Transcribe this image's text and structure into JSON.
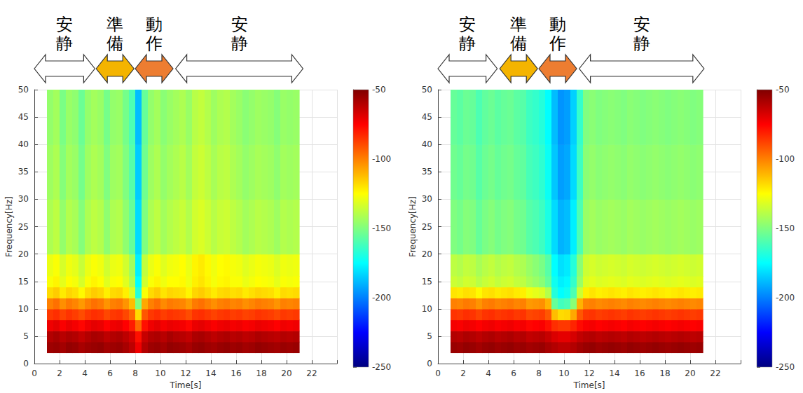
{
  "chart_data": [
    {
      "type": "heatmap",
      "phases": [
        {
          "label": "安静",
          "start": 0,
          "end": 4.8,
          "color": "#ffffff"
        },
        {
          "label": "準備",
          "start": 4.9,
          "end": 7.9,
          "color": "#f4b400"
        },
        {
          "label": "動作",
          "start": 8.0,
          "end": 11.0,
          "color": "#ed7d31"
        },
        {
          "label": "安静",
          "start": 11.2,
          "end": 21.3,
          "color": "#ffffff"
        }
      ],
      "x_label": "Time[s]",
      "y_label": "Frequency[Hz]",
      "xlim": [
        0,
        24
      ],
      "xticks": [
        0,
        2,
        4,
        6,
        8,
        10,
        12,
        14,
        16,
        18,
        20,
        22
      ],
      "ylim": [
        0,
        50
      ],
      "yticks": [
        0,
        5,
        10,
        15,
        20,
        25,
        30,
        35,
        40,
        45,
        50
      ],
      "grid": true,
      "time_edges": [
        1,
        1.5,
        2,
        2.5,
        3,
        3.5,
        4,
        4.5,
        5,
        5.5,
        6,
        6.5,
        7,
        7.5,
        8,
        8.5,
        9,
        9.5,
        10,
        10.5,
        11,
        11.5,
        12,
        12.5,
        13,
        13.5,
        14,
        14.5,
        15,
        15.5,
        16,
        16.5,
        17,
        17.5,
        18,
        18.5,
        19,
        19.5,
        20,
        20.5,
        21
      ],
      "freq_edges": [
        2,
        4,
        6,
        8,
        10,
        12,
        14,
        16,
        20,
        30,
        40,
        50
      ],
      "power": [
        [
          -56,
          -55,
          -57,
          -54,
          -55,
          -58,
          -56,
          -55,
          -54,
          -57,
          -56,
          -55,
          -58,
          -62,
          -72,
          -60,
          -56,
          -55,
          -57,
          -54,
          -55,
          -56,
          -58,
          -55,
          -54,
          -56,
          -57,
          -55,
          -54,
          -56,
          -55,
          -57,
          -56,
          -54,
          -55,
          -56,
          -57,
          -55,
          -56,
          -55
        ],
        [
          -60,
          -58,
          -61,
          -59,
          -60,
          -63,
          -60,
          -58,
          -59,
          -62,
          -60,
          -59,
          -62,
          -66,
          -78,
          -64,
          -60,
          -59,
          -61,
          -58,
          -60,
          -61,
          -63,
          -59,
          -58,
          -60,
          -62,
          -60,
          -59,
          -61,
          -60,
          -62,
          -61,
          -59,
          -60,
          -61,
          -62,
          -60,
          -61,
          -60
        ],
        [
          -72,
          -70,
          -74,
          -71,
          -73,
          -76,
          -72,
          -70,
          -71,
          -75,
          -72,
          -71,
          -75,
          -80,
          -95,
          -78,
          -72,
          -70,
          -73,
          -71,
          -72,
          -73,
          -76,
          -71,
          -70,
          -72,
          -74,
          -72,
          -71,
          -73,
          -72,
          -74,
          -73,
          -71,
          -72,
          -73,
          -75,
          -72,
          -73,
          -72
        ],
        [
          -86,
          -84,
          -88,
          -85,
          -87,
          -90,
          -86,
          -84,
          -85,
          -89,
          -86,
          -85,
          -89,
          -95,
          -118,
          -92,
          -86,
          -84,
          -87,
          -85,
          -86,
          -87,
          -90,
          -85,
          -84,
          -86,
          -88,
          -86,
          -85,
          -87,
          -86,
          -88,
          -87,
          -85,
          -86,
          -87,
          -89,
          -86,
          -87,
          -86
        ],
        [
          -100,
          -97,
          -103,
          -99,
          -101,
          -105,
          -100,
          -97,
          -99,
          -104,
          -100,
          -99,
          -104,
          -112,
          -150,
          -108,
          -100,
          -97,
          -102,
          -99,
          -100,
          -101,
          -105,
          -99,
          -97,
          -100,
          -103,
          -100,
          -99,
          -101,
          -100,
          -103,
          -101,
          -99,
          -100,
          -101,
          -104,
          -100,
          -101,
          -100
        ],
        [
          -118,
          -115,
          -121,
          -117,
          -119,
          -124,
          -118,
          -115,
          -117,
          -122,
          -118,
          -117,
          -122,
          -132,
          -168,
          -126,
          -118,
          -115,
          -120,
          -117,
          -118,
          -119,
          -123,
          -117,
          -115,
          -118,
          -121,
          -118,
          -117,
          -119,
          -118,
          -121,
          -119,
          -117,
          -118,
          -119,
          -122,
          -118,
          -119,
          -118
        ],
        [
          -126,
          -123,
          -130,
          -125,
          -127,
          -133,
          -126,
          -123,
          -125,
          -131,
          -126,
          -125,
          -131,
          -140,
          -175,
          -134,
          -126,
          -123,
          -128,
          -125,
          -125,
          -124,
          -128,
          -122,
          -120,
          -123,
          -127,
          -124,
          -123,
          -126,
          -126,
          -129,
          -127,
          -125,
          -126,
          -127,
          -130,
          -126,
          -127,
          -126
        ],
        [
          -129,
          -126,
          -133,
          -128,
          -130,
          -136,
          -129,
          -126,
          -128,
          -134,
          -129,
          -128,
          -134,
          -143,
          -178,
          -137,
          -129,
          -126,
          -131,
          -128,
          -127,
          -125,
          -129,
          -123,
          -121,
          -124,
          -128,
          -125,
          -124,
          -127,
          -128,
          -131,
          -129,
          -127,
          -128,
          -129,
          -132,
          -128,
          -129,
          -128
        ],
        [
          -141,
          -138,
          -146,
          -140,
          -142,
          -149,
          -141,
          -138,
          -140,
          -147,
          -141,
          -140,
          -147,
          -155,
          -182,
          -150,
          -141,
          -138,
          -143,
          -140,
          -138,
          -136,
          -140,
          -134,
          -132,
          -135,
          -139,
          -136,
          -135,
          -138,
          -140,
          -143,
          -141,
          -139,
          -140,
          -141,
          -144,
          -140,
          -141,
          -140
        ],
        [
          -144,
          -141,
          -149,
          -143,
          -145,
          -152,
          -144,
          -141,
          -143,
          -150,
          -144,
          -143,
          -150,
          -158,
          -185,
          -153,
          -144,
          -141,
          -146,
          -143,
          -141,
          -139,
          -143,
          -137,
          -135,
          -138,
          -142,
          -139,
          -138,
          -141,
          -143,
          -146,
          -144,
          -142,
          -143,
          -144,
          -147,
          -143,
          -144,
          -143
        ],
        [
          -146,
          -143,
          -151,
          -145,
          -147,
          -154,
          -146,
          -143,
          -145,
          -152,
          -146,
          -145,
          -152,
          -160,
          -188,
          -155,
          -146,
          -143,
          -148,
          -145,
          -143,
          -141,
          -145,
          -139,
          -137,
          -140,
          -144,
          -141,
          -140,
          -143,
          -145,
          -148,
          -146,
          -144,
          -145,
          -146,
          -149,
          -145,
          -146,
          -145
        ]
      ],
      "colorbar": {
        "range": [
          -250,
          -50
        ],
        "ticks": [
          -250,
          -200,
          -150,
          -100,
          -50
        ]
      }
    },
    {
      "type": "heatmap",
      "phases": [
        {
          "label": "安静",
          "start": 0,
          "end": 4.7,
          "color": "#ffffff"
        },
        {
          "label": "準備",
          "start": 4.9,
          "end": 7.9,
          "color": "#f4b400"
        },
        {
          "label": "動作",
          "start": 8.0,
          "end": 11.0,
          "color": "#ed7d31"
        },
        {
          "label": "安静",
          "start": 11.2,
          "end": 21.1,
          "color": "#ffffff"
        }
      ],
      "x_label": "Time[s]",
      "y_label": "Frequency[Hz]",
      "xlim": [
        0,
        24
      ],
      "xticks": [
        0,
        2,
        4,
        6,
        8,
        10,
        12,
        14,
        16,
        18,
        20,
        22
      ],
      "ylim": [
        0,
        50
      ],
      "yticks": [
        0,
        5,
        10,
        15,
        20,
        25,
        30,
        35,
        40,
        45,
        50
      ],
      "grid": true,
      "time_edges": [
        1,
        1.5,
        2,
        2.5,
        3,
        3.5,
        4,
        4.5,
        5,
        5.5,
        6,
        6.5,
        7,
        7.5,
        8,
        8.5,
        9,
        9.5,
        10,
        10.5,
        11,
        11.5,
        12,
        12.5,
        13,
        13.5,
        14,
        14.5,
        15,
        15.5,
        16,
        16.5,
        17,
        17.5,
        18,
        18.5,
        19,
        19.5,
        20,
        20.5,
        21
      ],
      "freq_edges": [
        2,
        4,
        6,
        8,
        10,
        12,
        14,
        16,
        20,
        30,
        40,
        50
      ],
      "power": [
        [
          -55,
          -56,
          -54,
          -55,
          -57,
          -55,
          -54,
          -56,
          -55,
          -54,
          -56,
          -55,
          -57,
          -56,
          -55,
          -58,
          -60,
          -62,
          -62,
          -60,
          -57,
          -55,
          -54,
          -56,
          -55,
          -54,
          -55,
          -56,
          -54,
          -55,
          -56,
          -55,
          -54,
          -55,
          -56,
          -55,
          -54,
          -55,
          -56,
          -55
        ],
        [
          -60,
          -61,
          -59,
          -60,
          -62,
          -60,
          -59,
          -61,
          -60,
          -59,
          -61,
          -60,
          -63,
          -62,
          -61,
          -64,
          -68,
          -70,
          -70,
          -67,
          -63,
          -61,
          -60,
          -62,
          -61,
          -60,
          -61,
          -62,
          -60,
          -61,
          -62,
          -61,
          -60,
          -61,
          -62,
          -61,
          -60,
          -61,
          -62,
          -61
        ],
        [
          -73,
          -74,
          -72,
          -73,
          -75,
          -73,
          -72,
          -74,
          -73,
          -72,
          -74,
          -73,
          -76,
          -75,
          -74,
          -78,
          -84,
          -86,
          -86,
          -82,
          -77,
          -74,
          -73,
          -75,
          -74,
          -73,
          -74,
          -75,
          -73,
          -74,
          -75,
          -74,
          -73,
          -74,
          -75,
          -74,
          -73,
          -74,
          -75,
          -74
        ],
        [
          -85,
          -86,
          -84,
          -85,
          -88,
          -85,
          -84,
          -86,
          -85,
          -84,
          -86,
          -85,
          -89,
          -88,
          -87,
          -92,
          -112,
          -118,
          -117,
          -108,
          -92,
          -86,
          -85,
          -87,
          -86,
          -85,
          -86,
          -87,
          -85,
          -86,
          -87,
          -86,
          -85,
          -86,
          -87,
          -86,
          -85,
          -86,
          -87,
          -86
        ],
        [
          -100,
          -101,
          -99,
          -100,
          -104,
          -100,
          -99,
          -101,
          -100,
          -99,
          -101,
          -100,
          -105,
          -104,
          -103,
          -110,
          -155,
          -162,
          -160,
          -148,
          -110,
          -101,
          -100,
          -102,
          -101,
          -100,
          -101,
          -102,
          -100,
          -101,
          -102,
          -101,
          -100,
          -101,
          -102,
          -101,
          -100,
          -101,
          -102,
          -101
        ],
        [
          -120,
          -121,
          -119,
          -120,
          -124,
          -120,
          -119,
          -121,
          -120,
          -119,
          -121,
          -122,
          -128,
          -130,
          -132,
          -140,
          -168,
          -175,
          -172,
          -160,
          -135,
          -122,
          -120,
          -122,
          -121,
          -120,
          -121,
          -122,
          -120,
          -121,
          -122,
          -121,
          -120,
          -121,
          -122,
          -121,
          -120,
          -121,
          -122,
          -121
        ],
        [
          -135,
          -137,
          -134,
          -135,
          -139,
          -136,
          -134,
          -137,
          -135,
          -134,
          -137,
          -138,
          -142,
          -145,
          -148,
          -155,
          -172,
          -178,
          -176,
          -165,
          -145,
          -132,
          -130,
          -132,
          -131,
          -130,
          -131,
          -132,
          -130,
          -131,
          -132,
          -131,
          -130,
          -131,
          -132,
          -131,
          -130,
          -131,
          -132,
          -131
        ],
        [
          -138,
          -140,
          -137,
          -138,
          -142,
          -139,
          -137,
          -140,
          -138,
          -137,
          -140,
          -141,
          -145,
          -148,
          -151,
          -158,
          -175,
          -181,
          -179,
          -168,
          -148,
          -135,
          -133,
          -135,
          -134,
          -133,
          -134,
          -135,
          -133,
          -134,
          -135,
          -134,
          -133,
          -134,
          -135,
          -134,
          -133,
          -134,
          -135,
          -134
        ],
        [
          -150,
          -152,
          -149,
          -150,
          -155,
          -151,
          -149,
          -152,
          -150,
          -149,
          -152,
          -153,
          -158,
          -160,
          -163,
          -170,
          -182,
          -190,
          -188,
          -178,
          -160,
          -145,
          -143,
          -145,
          -144,
          -143,
          -144,
          -145,
          -143,
          -144,
          -145,
          -144,
          -143,
          -144,
          -145,
          -144,
          -143,
          -144,
          -145,
          -144
        ],
        [
          -153,
          -155,
          -152,
          -153,
          -158,
          -154,
          -152,
          -155,
          -153,
          -152,
          -155,
          -156,
          -161,
          -163,
          -166,
          -173,
          -186,
          -194,
          -192,
          -182,
          -163,
          -148,
          -146,
          -148,
          -147,
          -146,
          -147,
          -148,
          -146,
          -147,
          -148,
          -147,
          -146,
          -147,
          -148,
          -147,
          -146,
          -147,
          -148,
          -147
        ],
        [
          -155,
          -157,
          -154,
          -155,
          -160,
          -156,
          -154,
          -157,
          -155,
          -154,
          -157,
          -158,
          -163,
          -165,
          -168,
          -175,
          -188,
          -196,
          -194,
          -184,
          -165,
          -150,
          -148,
          -150,
          -149,
          -148,
          -149,
          -150,
          -148,
          -149,
          -150,
          -149,
          -148,
          -149,
          -150,
          -149,
          -148,
          -149,
          -150,
          -149
        ]
      ],
      "colorbar": {
        "range": [
          -250,
          -50
        ],
        "ticks": [
          -250,
          -200,
          -150,
          -100,
          -50
        ]
      }
    }
  ]
}
